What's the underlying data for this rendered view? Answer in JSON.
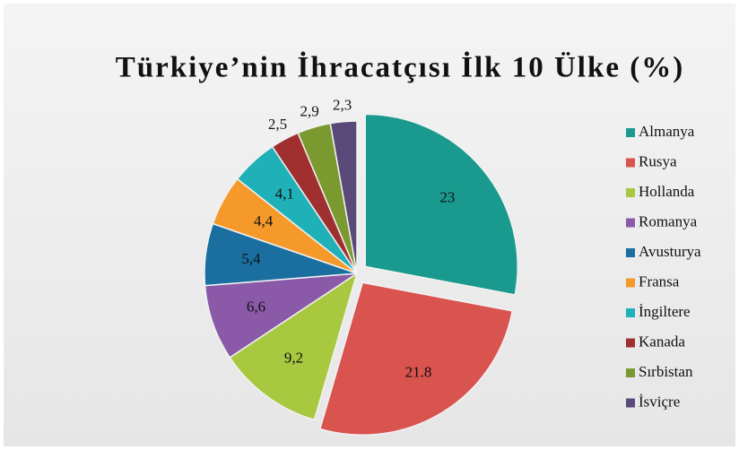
{
  "chart_data": {
    "type": "pie",
    "title": "Türkiye’nin İhracatçısı İlk 10 Ülke (%)",
    "categories": [
      "Almanya",
      "Rusya",
      "Hollanda",
      "Romanya",
      "Avusturya",
      "Fransa",
      "İngiltere",
      "Kanada",
      "Sırbistan",
      "İsviçre"
    ],
    "values": [
      23,
      21.8,
      9.2,
      6.6,
      5.4,
      4.4,
      4.1,
      2.5,
      2.9,
      2.3
    ],
    "value_labels": [
      "23",
      "21.8",
      "9,2",
      "6,6",
      "5,4",
      "4,4",
      "4,1",
      "2,5",
      "2,9",
      "2,3"
    ],
    "colors": [
      "#1a9a8e",
      "#d9534f",
      "#a8c840",
      "#8a5aa8",
      "#1a6fa0",
      "#f59a2a",
      "#1fb0b8",
      "#a03030",
      "#7a9a30",
      "#5a4a7a"
    ],
    "exploded": [
      "Almanya",
      "Rusya"
    ],
    "legend": "right"
  }
}
